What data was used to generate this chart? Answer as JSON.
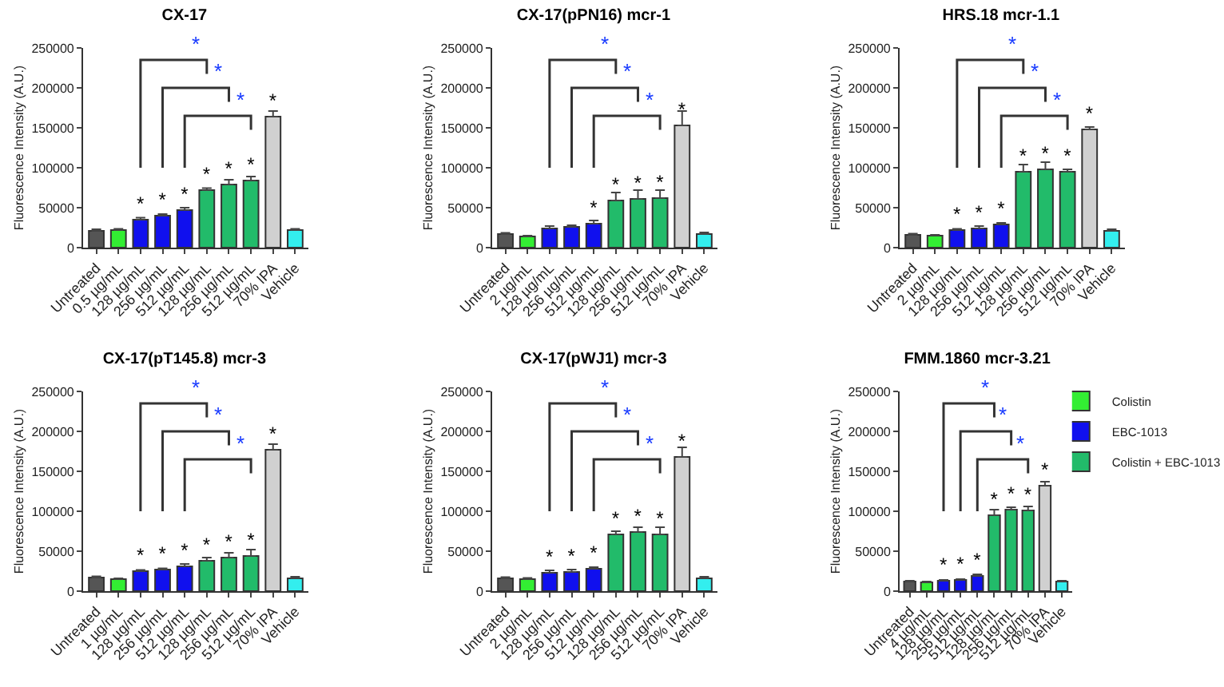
{
  "chart_data": [
    {
      "type": "bar",
      "title": "CX-17",
      "ylabel": "Fluorescence Intensity (A.U.)",
      "categories": [
        "Untreated",
        "0.5 µg/mL",
        "128 µg/mL",
        "256 µg/mL",
        "512 µg/mL",
        "128 µg/mL",
        "256 µg/mL",
        "512 µg/mL",
        "70% IPA",
        "Vehicle"
      ],
      "values": [
        21000,
        22000,
        35000,
        40000,
        47000,
        72000,
        79000,
        84000,
        164000,
        22000
      ],
      "colors": [
        "#555555",
        "#33ee33",
        "#1010ee",
        "#1010ee",
        "#1010ee",
        "#22bb6a",
        "#22bb6a",
        "#22bb6a",
        "#d0d0d0",
        "#33eeee"
      ],
      "errors": [
        [
          21000,
          23000
        ],
        [
          22000,
          23500
        ],
        [
          35000,
          37500
        ],
        [
          40000,
          42000
        ],
        [
          47000,
          50000
        ],
        [
          72000,
          74500
        ],
        [
          79000,
          85000
        ],
        [
          84000,
          89000
        ],
        [
          164000,
          171000
        ],
        [
          22000,
          23500
        ]
      ],
      "value_labels": [
        null,
        null,
        "*",
        "*",
        "*",
        "*",
        "*",
        "*",
        "*",
        null
      ],
      "annotations": [
        "*",
        "*",
        "*"
      ],
      "ylim": [
        0,
        250000
      ],
      "yticks": [
        0,
        50000,
        100000,
        150000,
        200000,
        250000
      ],
      "grid": false,
      "legend": false
    },
    {
      "type": "bar",
      "title": "CX-17(pPN16) mcr-1",
      "ylabel": "Fluorescence Intensity (A.U.)",
      "categories": [
        "Untreated",
        "2 µg/mL",
        "128 µg/mL",
        "256 µg/mL",
        "512 µg/mL",
        "128 µg/mL",
        "256 µg/mL",
        "512 µg/mL",
        "70% IPA",
        "Vehicle"
      ],
      "values": [
        17000,
        14000,
        24000,
        26000,
        30000,
        59000,
        61000,
        62000,
        153000,
        17000
      ],
      "colors": [
        "#555555",
        "#33ee33",
        "#1010ee",
        "#1010ee",
        "#1010ee",
        "#22bb6a",
        "#22bb6a",
        "#22bb6a",
        "#d0d0d0",
        "#33eeee"
      ],
      "errors": [
        [
          17000,
          18500
        ],
        [
          14000,
          15000
        ],
        [
          24000,
          27000
        ],
        [
          26000,
          28000
        ],
        [
          30000,
          34000
        ],
        [
          59000,
          69000
        ],
        [
          61000,
          72000
        ],
        [
          62000,
          72000
        ],
        [
          153000,
          171000
        ],
        [
          17000,
          19000
        ]
      ],
      "value_labels": [
        null,
        null,
        null,
        null,
        "*",
        "*",
        "*",
        "*",
        "*",
        null
      ],
      "annotations": [
        "*",
        "*",
        "*"
      ],
      "ylim": [
        0,
        250000
      ],
      "yticks": [
        0,
        50000,
        100000,
        150000,
        200000,
        250000
      ],
      "grid": false,
      "legend": false
    },
    {
      "type": "bar",
      "title": "HRS.18 mcr-1.1",
      "ylabel": "Fluorescence Intensity (A.U.)",
      "categories": [
        "Untreated",
        "2 µg/mL",
        "128 µg/mL",
        "256 µg/mL",
        "512 µg/mL",
        "128 µg/mL",
        "256 µg/mL",
        "512 µg/mL",
        "70% IPA",
        "Vehicle"
      ],
      "values": [
        16000,
        15000,
        22000,
        24000,
        29000,
        95000,
        98000,
        95000,
        148000,
        21000
      ],
      "colors": [
        "#555555",
        "#33ee33",
        "#1010ee",
        "#1010ee",
        "#1010ee",
        "#22bb6a",
        "#22bb6a",
        "#22bb6a",
        "#d0d0d0",
        "#33eeee"
      ],
      "errors": [
        [
          16000,
          17500
        ],
        [
          15000,
          16000
        ],
        [
          22000,
          23500
        ],
        [
          24000,
          27000
        ],
        [
          29000,
          31000
        ],
        [
          95000,
          104000
        ],
        [
          98000,
          107000
        ],
        [
          95000,
          98000
        ],
        [
          148000,
          151000
        ],
        [
          21000,
          23000
        ]
      ],
      "value_labels": [
        null,
        null,
        "*",
        "*",
        "*",
        "*",
        "*",
        "*",
        "*",
        null
      ],
      "annotations": [
        "*",
        "*",
        "*"
      ],
      "ylim": [
        0,
        250000
      ],
      "yticks": [
        0,
        50000,
        100000,
        150000,
        200000,
        250000
      ],
      "grid": false,
      "legend": false
    },
    {
      "type": "bar",
      "title": "CX-17(pT145.8) mcr-3",
      "ylabel": "Fluorescence Intensity (A.U.)",
      "categories": [
        "Untreated",
        "1 µg/mL",
        "128 µg/mL",
        "256 µg/mL",
        "512 µg/mL",
        "128 µg/mL",
        "256 µg/mL",
        "512 µg/mL",
        "70% IPA",
        "Vehicle"
      ],
      "values": [
        17000,
        15000,
        25000,
        27000,
        31000,
        38000,
        42000,
        44000,
        177000,
        16000
      ],
      "colors": [
        "#555555",
        "#33ee33",
        "#1010ee",
        "#1010ee",
        "#1010ee",
        "#22bb6a",
        "#22bb6a",
        "#22bb6a",
        "#d0d0d0",
        "#33eeee"
      ],
      "errors": [
        [
          17000,
          18500
        ],
        [
          15000,
          16000
        ],
        [
          25000,
          26500
        ],
        [
          27000,
          28500
        ],
        [
          31000,
          34000
        ],
        [
          38000,
          42000
        ],
        [
          42000,
          48000
        ],
        [
          44000,
          52000
        ],
        [
          177000,
          184000
        ],
        [
          16000,
          18000
        ]
      ],
      "value_labels": [
        null,
        null,
        "*",
        "*",
        "*",
        "*",
        "*",
        "*",
        "*",
        null
      ],
      "annotations": [
        "*",
        "*",
        "*"
      ],
      "ylim": [
        0,
        250000
      ],
      "yticks": [
        0,
        50000,
        100000,
        150000,
        200000,
        250000
      ],
      "grid": false,
      "legend": false
    },
    {
      "type": "bar",
      "title": "CX-17(pWJ1) mcr-3",
      "ylabel": "Fluorescence Intensity (A.U.)",
      "categories": [
        "Untreated",
        "2 µg/mL",
        "128 µg/mL",
        "256 µg/mL",
        "512 µg/mL",
        "128 µg/mL",
        "256 µg/mL",
        "512 µg/mL",
        "70% IPA",
        "Vehicle"
      ],
      "values": [
        16000,
        15000,
        23000,
        24000,
        28000,
        71000,
        74000,
        71000,
        168000,
        16000
      ],
      "colors": [
        "#555555",
        "#33ee33",
        "#1010ee",
        "#1010ee",
        "#1010ee",
        "#22bb6a",
        "#22bb6a",
        "#22bb6a",
        "#d0d0d0",
        "#33eeee"
      ],
      "errors": [
        [
          16000,
          17500
        ],
        [
          15000,
          16500
        ],
        [
          23000,
          26000
        ],
        [
          24000,
          27000
        ],
        [
          28000,
          30000
        ],
        [
          71000,
          75000
        ],
        [
          74000,
          80000
        ],
        [
          71000,
          80000
        ],
        [
          168000,
          180000
        ],
        [
          16000,
          18000
        ]
      ],
      "value_labels": [
        null,
        null,
        "*",
        "*",
        "*",
        "*",
        "*",
        "*",
        "*",
        null
      ],
      "annotations": [
        "*",
        "*",
        "*"
      ],
      "ylim": [
        0,
        250000
      ],
      "yticks": [
        0,
        50000,
        100000,
        150000,
        200000,
        250000
      ],
      "grid": false,
      "legend": false
    },
    {
      "type": "bar",
      "title": "FMM.1860 mcr-3.21",
      "ylabel": "Fluorescence Intensity (A.U.)",
      "categories": [
        "Untreated",
        "4 µg/mL",
        "128 µg/mL",
        "256 µg/mL",
        "512 µg/mL",
        "128 µg/mL",
        "256 µg/mL",
        "512 µg/mL",
        "70% IPA",
        "Vehicle"
      ],
      "series": [
        {
          "color": "#555555",
          "values": [
            12000,
            null,
            null,
            null,
            null,
            null,
            null,
            null,
            null,
            null
          ],
          "errors": [
            [
              12000,
              13000
            ],
            null,
            null,
            null,
            null,
            null,
            null,
            null,
            null,
            null
          ],
          "value_labels": [
            null,
            null,
            null,
            null,
            null,
            null,
            null,
            null,
            null,
            null
          ]
        },
        {
          "name": "Colistin",
          "color": "#33ee33",
          "values": [
            null,
            11000,
            null,
            null,
            null,
            null,
            null,
            null,
            null,
            null
          ],
          "errors": [
            null,
            [
              11000,
              12000
            ],
            null,
            null,
            null,
            null,
            null,
            null,
            null,
            null
          ],
          "value_labels": [
            null,
            null,
            null,
            null,
            null,
            null,
            null,
            null,
            null,
            null
          ]
        },
        {
          "name": "EBC-1013",
          "color": "#1010ee",
          "values": [
            null,
            null,
            13000,
            14000,
            19000,
            null,
            null,
            null,
            null,
            null
          ],
          "errors": [
            null,
            null,
            [
              13000,
              14000
            ],
            [
              14000,
              15000
            ],
            [
              19000,
              21000
            ],
            null,
            null,
            null,
            null,
            null
          ],
          "value_labels": [
            null,
            null,
            "*",
            "*",
            "*",
            null,
            null,
            null,
            null,
            null
          ]
        },
        {
          "name": "Colistin + EBC-1013",
          "color": "#22bb6a",
          "values": [
            null,
            null,
            null,
            null,
            null,
            95000,
            102000,
            101000,
            null,
            null
          ],
          "errors": [
            null,
            null,
            null,
            null,
            null,
            [
              95000,
              102000
            ],
            [
              102000,
              105000
            ],
            [
              101000,
              106000
            ],
            null,
            null
          ],
          "value_labels": [
            null,
            null,
            null,
            null,
            null,
            "*",
            "*",
            "*",
            null,
            null
          ]
        },
        {
          "color": "#d0d0d0",
          "values": [
            null,
            null,
            null,
            null,
            null,
            null,
            null,
            null,
            132000,
            null
          ],
          "errors": [
            null,
            null,
            null,
            null,
            null,
            null,
            null,
            null,
            [
              132000,
              137000
            ],
            null
          ],
          "value_labels": [
            null,
            null,
            null,
            null,
            null,
            null,
            null,
            null,
            "*",
            null
          ]
        },
        {
          "color": "#33eeee",
          "values": [
            null,
            null,
            null,
            null,
            null,
            null,
            null,
            null,
            null,
            12000
          ],
          "errors": [
            null,
            null,
            null,
            null,
            null,
            null,
            null,
            null,
            null,
            [
              12000,
              13000
            ]
          ],
          "value_labels": [
            null,
            null,
            null,
            null,
            null,
            null,
            null,
            null,
            null,
            null
          ]
        }
      ],
      "annotations": [
        "*",
        "*",
        "*"
      ],
      "ylim": [
        0,
        250000
      ],
      "yticks": [
        0,
        50000,
        100000,
        150000,
        200000,
        250000
      ],
      "grid": false,
      "legend": "top right"
    }
  ]
}
